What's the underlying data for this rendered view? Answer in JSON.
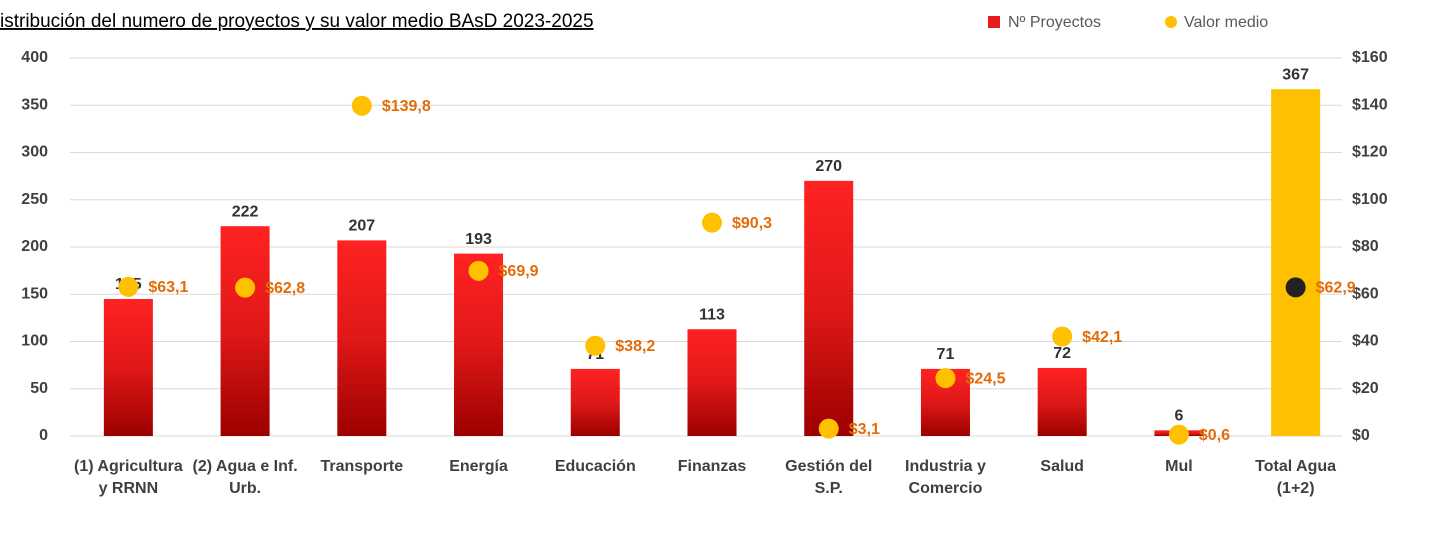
{
  "chart_data": {
    "type": "bar_dot",
    "title": "istribución del numero de proyectos y su valor medio BAsD 2023-2025",
    "categories": [
      "(1) Agricultura y RRNN",
      "(2) Agua e Inf. Urb.",
      "Transporte",
      "Energía",
      "Educación",
      "Finanzas",
      "Gestión del S.P.",
      "Industria y Comercio",
      "Salud",
      "Mul",
      "Total Agua (1+2)"
    ],
    "series": [
      {
        "name": "Nº Proyectos",
        "color": "#e81c1c",
        "colors": [
          "#e81c1c",
          "#e81c1c",
          "#e81c1c",
          "#e81c1c",
          "#e81c1c",
          "#e81c1c",
          "#e81c1c",
          "#e81c1c",
          "#e81c1c",
          "#e81c1c",
          "#ffc000"
        ],
        "values": [
          145,
          222,
          207,
          193,
          71,
          113,
          270,
          71,
          72,
          6,
          367
        ]
      },
      {
        "name": "Valor medio",
        "color": "#ffc000",
        "axis": "y2",
        "colors": [
          "#ffc000",
          "#ffc000",
          "#ffc000",
          "#ffc000",
          "#ffc000",
          "#ffc000",
          "#ffc000",
          "#ffc000",
          "#ffc000",
          "#ffc000",
          "#222222"
        ],
        "values": [
          63.1,
          62.8,
          139.8,
          69.9,
          38.2,
          90.3,
          3.1,
          24.5,
          42.1,
          0.6,
          62.9
        ],
        "value_labels": [
          "$63,1",
          "$62,8",
          "$139,8",
          "$69,9",
          "$38,2",
          "$90,3",
          "$3,1",
          "$24,5",
          "$42,1",
          "$0,6",
          "$62,9"
        ]
      }
    ],
    "ylim": [
      0,
      400
    ],
    "yticks": [
      0,
      50,
      100,
      150,
      200,
      250,
      300,
      350,
      400
    ],
    "y2lim": [
      0,
      160
    ],
    "y2ticks": [
      {
        "value": 0,
        "label": "$0"
      },
      {
        "value": 20,
        "label": "$20"
      },
      {
        "value": 40,
        "label": "$40"
      },
      {
        "value": 60,
        "label": "$60"
      },
      {
        "value": 80,
        "label": "$80"
      },
      {
        "value": 100,
        "label": "$100"
      },
      {
        "value": 120,
        "label": "$120"
      },
      {
        "value": 140,
        "label": "$140"
      },
      {
        "value": 160,
        "label": "$160"
      }
    ],
    "grid": true,
    "legend": "top-right"
  }
}
